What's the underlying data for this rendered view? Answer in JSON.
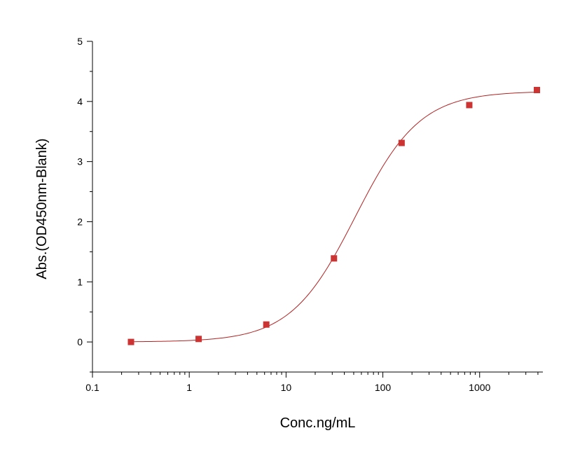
{
  "chart_data": {
    "type": "scatter",
    "xlabel": "Conc.ng/mL",
    "ylabel": "Abs.(OD450nm-Blank)",
    "x_scale": "log",
    "xlim": [
      0.1,
      4500
    ],
    "ylim": [
      -0.5,
      5
    ],
    "x_ticks": [
      0.1,
      1,
      10,
      100,
      1000
    ],
    "x_tick_labels": [
      "0.1",
      "1",
      "10",
      "100",
      "1000"
    ],
    "y_ticks": [
      0,
      1,
      2,
      3,
      4,
      5
    ],
    "y_tick_labels": [
      "0",
      "1",
      "2",
      "3",
      "4",
      "5"
    ],
    "grid": false,
    "marker_color": "#cc3333",
    "curve_color": "#b22222",
    "series": [
      {
        "x": [
          0.25,
          1.25,
          6.25,
          31.25,
          156.25,
          781.25,
          3906.25
        ],
        "y": [
          0.0,
          0.05,
          0.29,
          1.39,
          3.31,
          3.94,
          4.19
        ]
      }
    ],
    "fit": {
      "model": "4PL",
      "bottom": 0.0,
      "top": 4.17,
      "ec50": 52,
      "hill": 1.3
    }
  }
}
